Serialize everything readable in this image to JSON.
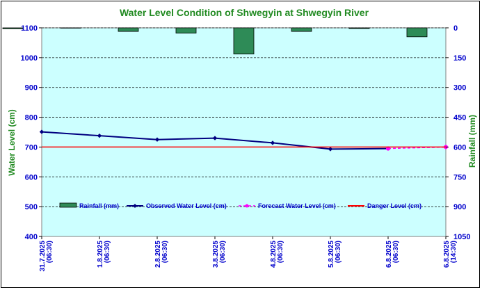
{
  "chart_data": {
    "type": "line",
    "title": "Water Level Condition of Shwegyin at Shwegyin River",
    "ylabel": "Water Level (cm)",
    "y2label": "Rainfall (mm)",
    "categories": [
      "31.7.2025 (06:30)",
      "1.8.2025 (06:30)",
      "2.8.2025 (06:30)",
      "3.8.2025 (06:30)",
      "4.8.2025 (06:30)",
      "5.8.2025 (06:30)",
      "6.8.2025 (06:30)",
      "6.8.2025 (14:30)"
    ],
    "ylim": [
      400,
      1100
    ],
    "yticks": [
      400,
      500,
      600,
      700,
      800,
      900,
      1000,
      1100
    ],
    "y2lim": [
      0,
      1050
    ],
    "y2ticks": [
      0,
      150,
      300,
      450,
      600,
      750,
      900,
      1050
    ],
    "y2_inverted": true,
    "grid": "horizontal dashed",
    "series": [
      {
        "name": "Rainfall (mm)",
        "kind": "bar",
        "axis": "right",
        "color": "#2e8b57",
        "values": [
          5,
          0,
          18,
          27,
          132,
          18,
          4,
          45
        ]
      },
      {
        "name": "Observed Water Level (cm)",
        "kind": "line",
        "axis": "left",
        "color": "#000080",
        "values": [
          751,
          738,
          725,
          730,
          714,
          693,
          695,
          null
        ]
      },
      {
        "name": "Forecast Water Level (cm)",
        "kind": "line-dashed",
        "axis": "left",
        "color": "#ff00ff",
        "values": [
          null,
          null,
          null,
          null,
          null,
          null,
          695,
          700
        ]
      },
      {
        "name": "Danger Level (cm)",
        "kind": "line",
        "axis": "left",
        "color": "#ff0000",
        "values": [
          700,
          700,
          700,
          700,
          700,
          700,
          700,
          700
        ]
      }
    ]
  }
}
